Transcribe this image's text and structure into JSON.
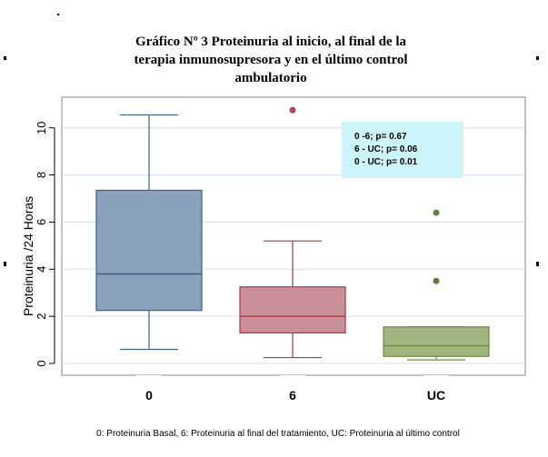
{
  "chart_data": {
    "type": "box",
    "title_lines": [
      "Gráfico Nº 3 Proteinuria al inicio, al final de la",
      "terapia inmunosupresora y en el último control",
      "ambulatorio"
    ],
    "ylabel": "Proteinuria /24 Horas",
    "xlabel": "",
    "ylim": [
      -0.5,
      11.3
    ],
    "yticks": [
      0,
      2,
      4,
      6,
      8,
      10
    ],
    "grid": true,
    "categories": [
      "0",
      "6",
      "UC"
    ],
    "boxes": [
      {
        "category": "0",
        "whisker_low": 0.6,
        "q1": 2.25,
        "median": 3.8,
        "q3": 7.35,
        "whisker_high": 10.55,
        "outliers": [],
        "color": "#8aa1bb"
      },
      {
        "category": "6",
        "whisker_low": 0.25,
        "q1": 1.3,
        "median": 2.0,
        "q3": 3.25,
        "whisker_high": 5.2,
        "outliers": [
          10.75
        ],
        "color": "#c9909a"
      },
      {
        "category": "UC",
        "whisker_low": 0.15,
        "q1": 0.3,
        "median": 0.75,
        "q3": 1.55,
        "whisker_high": 1.55,
        "outliers": [
          3.5,
          6.4
        ],
        "color": "#a2b480"
      }
    ],
    "annotation_lines": [
      "0 -6; p= 0.67",
      "6 - UC; p= 0.06",
      "0 - UC; p= 0.01"
    ],
    "caption": "0: Proteinuria Basal, 6: Proteinuria al final del tratamiento, UC: Proteinuria al último control",
    "colors": {
      "box0_stroke": "#3d5f86",
      "box6_stroke": "#a23a44",
      "boxUC_stroke": "#6b8a3a",
      "outlier6": "#b04a50",
      "outlierUC": "#5f7f39",
      "annot_bg": "#ccf5fa",
      "grid": "#d6dde6"
    }
  }
}
